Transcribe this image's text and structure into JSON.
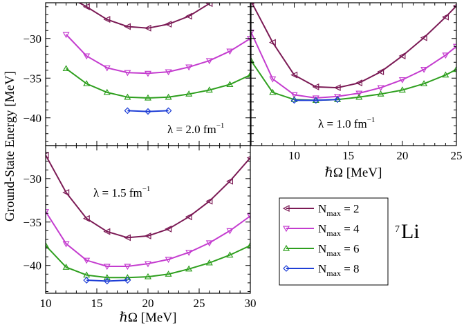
{
  "figure": {
    "ylabel": "Ground-State Energy [MeV]",
    "nucleus": {
      "mass": "7",
      "symbol": "Li"
    },
    "colors": {
      "nmax2": "#7b1a55",
      "nmax4": "#c43ccf",
      "nmax6": "#2e9f1e",
      "nmax8": "#1f3fd6"
    }
  },
  "legend": {
    "items": [
      {
        "main": "N",
        "sub": "max",
        "rest": " = 2",
        "color": "#7b1a55",
        "marker": "tri-left"
      },
      {
        "main": "N",
        "sub": "max",
        "rest": " = 4",
        "color": "#c43ccf",
        "marker": "tri-down"
      },
      {
        "main": "N",
        "sub": "max",
        "rest": " = 6",
        "color": "#2e9f1e",
        "marker": "tri-up"
      },
      {
        "main": "N",
        "sub": "max",
        "rest": " = 8",
        "color": "#1f3fd6",
        "marker": "diamond"
      }
    ]
  },
  "chart_data": [
    {
      "type": "line",
      "panel": "top-left",
      "annotation": {
        "pre": "λ = 2.0 fm",
        "sup": "−1"
      },
      "xlim": [
        10,
        30
      ],
      "ylim": [
        -43.5,
        -25.5
      ],
      "yticks": [
        -30,
        -35,
        -40
      ],
      "ytick_labels": [
        "−30",
        "−35",
        "−40"
      ],
      "xtick_labels": [],
      "xlabel": "",
      "series": [
        {
          "name": "Nmax = 2",
          "x": [
            12,
            14,
            16,
            18,
            20,
            22,
            24,
            26
          ],
          "y": [
            -24.6,
            -26.0,
            -27.6,
            -28.5,
            -28.7,
            -28.2,
            -27.2,
            -25.6
          ]
        },
        {
          "name": "Nmax = 4",
          "x": [
            12,
            14,
            16,
            18,
            20,
            22,
            24,
            26,
            28,
            30
          ],
          "y": [
            -29.5,
            -32.2,
            -33.7,
            -34.3,
            -34.4,
            -34.2,
            -33.6,
            -32.8,
            -31.6,
            -30.0
          ]
        },
        {
          "name": "Nmax = 6",
          "x": [
            12,
            14,
            16,
            18,
            20,
            22,
            24,
            26,
            28,
            30
          ],
          "y": [
            -33.8,
            -35.7,
            -36.8,
            -37.4,
            -37.5,
            -37.4,
            -37.0,
            -36.5,
            -35.8,
            -34.6
          ]
        },
        {
          "name": "Nmax = 8",
          "x": [
            18,
            20,
            22
          ],
          "y": [
            -39.1,
            -39.2,
            -39.1
          ]
        }
      ]
    },
    {
      "type": "line",
      "panel": "top-right",
      "annotation": {
        "pre": "λ = 1.0 fm",
        "sup": "−1"
      },
      "xlim": [
        6,
        25
      ],
      "ylim": [
        -43.5,
        -25.5
      ],
      "yticks": [],
      "ytick_labels": [],
      "xticks": [
        10,
        15,
        20,
        25
      ],
      "xtick_labels": [
        "10",
        "15",
        "20",
        "25"
      ],
      "xlabel": "ℏΩ [MeV]",
      "series": [
        {
          "name": "Nmax = 2",
          "x": [
            6,
            8,
            10,
            12,
            14,
            16,
            18,
            20,
            22,
            24,
            25
          ],
          "y": [
            -25.3,
            -30.5,
            -34.6,
            -36.1,
            -36.2,
            -35.6,
            -34.2,
            -32.2,
            -29.9,
            -27.3,
            -25.9
          ]
        },
        {
          "name": "Nmax = 4",
          "x": [
            6,
            8,
            10,
            12,
            14,
            16,
            18,
            20,
            22,
            24,
            25
          ],
          "y": [
            -29.2,
            -35.1,
            -37.1,
            -37.5,
            -37.3,
            -36.9,
            -36.2,
            -35.2,
            -33.9,
            -32.1,
            -31.0
          ]
        },
        {
          "name": "Nmax = 6",
          "x": [
            6,
            8,
            10,
            12,
            14,
            16,
            18,
            20,
            22,
            24,
            25
          ],
          "y": [
            -32.8,
            -36.8,
            -37.7,
            -37.8,
            -37.7,
            -37.4,
            -37.0,
            -36.5,
            -35.7,
            -34.6,
            -33.9
          ]
        },
        {
          "name": "Nmax = 8",
          "x": [
            10,
            12,
            14
          ],
          "y": [
            -37.8,
            -37.8,
            -37.7
          ]
        }
      ]
    },
    {
      "type": "line",
      "panel": "bottom-left",
      "annotation": {
        "pre": "λ = 1.5 fm",
        "sup": "−1"
      },
      "xlim": [
        10,
        30
      ],
      "ylim": [
        -43.2,
        -26.2
      ],
      "yticks": [
        -30,
        -35,
        -40
      ],
      "ytick_labels": [
        "−30",
        "−35",
        "−40"
      ],
      "xticks": [
        10,
        15,
        20,
        25,
        30
      ],
      "xtick_labels": [
        "10",
        "15",
        "20",
        "25",
        "30"
      ],
      "xlabel": "ℏΩ [MeV]",
      "series": [
        {
          "name": "Nmax = 2",
          "x": [
            10,
            12,
            14,
            16,
            18,
            20,
            22,
            24,
            26,
            28,
            30
          ],
          "y": [
            -27.3,
            -31.6,
            -34.6,
            -36.1,
            -36.8,
            -36.6,
            -35.8,
            -34.4,
            -32.6,
            -30.3,
            -27.6
          ]
        },
        {
          "name": "Nmax = 4",
          "x": [
            10,
            12,
            14,
            16,
            18,
            20,
            22,
            24,
            26,
            28,
            30
          ],
          "y": [
            -33.8,
            -37.5,
            -39.4,
            -40.1,
            -40.1,
            -39.8,
            -39.3,
            -38.5,
            -37.4,
            -36.0,
            -34.3
          ]
        },
        {
          "name": "Nmax = 6",
          "x": [
            10,
            12,
            14,
            16,
            18,
            20,
            22,
            24,
            26,
            28,
            30
          ],
          "y": [
            -37.7,
            -40.2,
            -41.1,
            -41.4,
            -41.4,
            -41.3,
            -41.0,
            -40.4,
            -39.7,
            -38.8,
            -37.7
          ]
        },
        {
          "name": "Nmax = 8",
          "x": [
            14,
            16,
            18
          ],
          "y": [
            -41.7,
            -41.8,
            -41.7
          ]
        }
      ]
    }
  ]
}
